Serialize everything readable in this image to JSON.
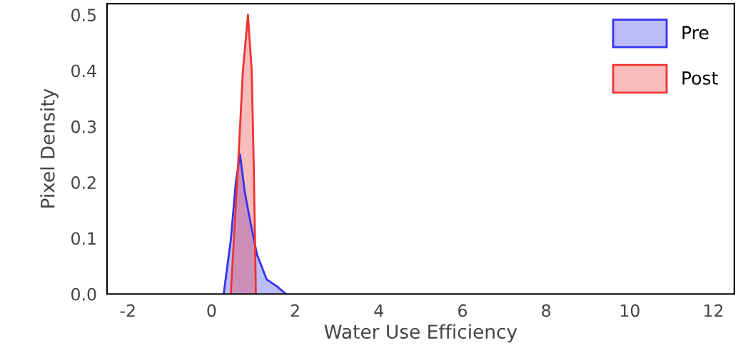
{
  "chart_data": {
    "type": "area",
    "xlabel": "Water Use Efficiency",
    "ylabel": "Pixel Density",
    "xlim": [
      -2.5,
      12.5
    ],
    "xticks": [
      -2,
      0,
      2,
      4,
      6,
      8,
      10,
      12
    ],
    "ylim": [
      0,
      0.52
    ],
    "yticks": [
      {
        "value": 0,
        "label": "0.0"
      },
      0.1,
      0.2,
      0.3,
      0.4,
      0.5
    ],
    "grid": false,
    "legend": "top right",
    "series": [
      {
        "name": "Pre",
        "color": "#3333ee",
        "x": [
          0.29,
          0.46,
          0.58,
          0.68,
          0.8,
          0.96,
          1.09,
          1.32,
          1.56,
          1.78
        ],
        "values": [
          0,
          0.097,
          0.2,
          0.25,
          0.18,
          0.117,
          0.07,
          0.026,
          0.014,
          0
        ]
      },
      {
        "name": "Post",
        "color": "#ee3333",
        "x": [
          0.46,
          0.63,
          0.75,
          0.87,
          0.96,
          1.01,
          1.06
        ],
        "values": [
          0,
          0.225,
          0.4,
          0.5,
          0.4,
          0.225,
          0
        ]
      }
    ]
  }
}
